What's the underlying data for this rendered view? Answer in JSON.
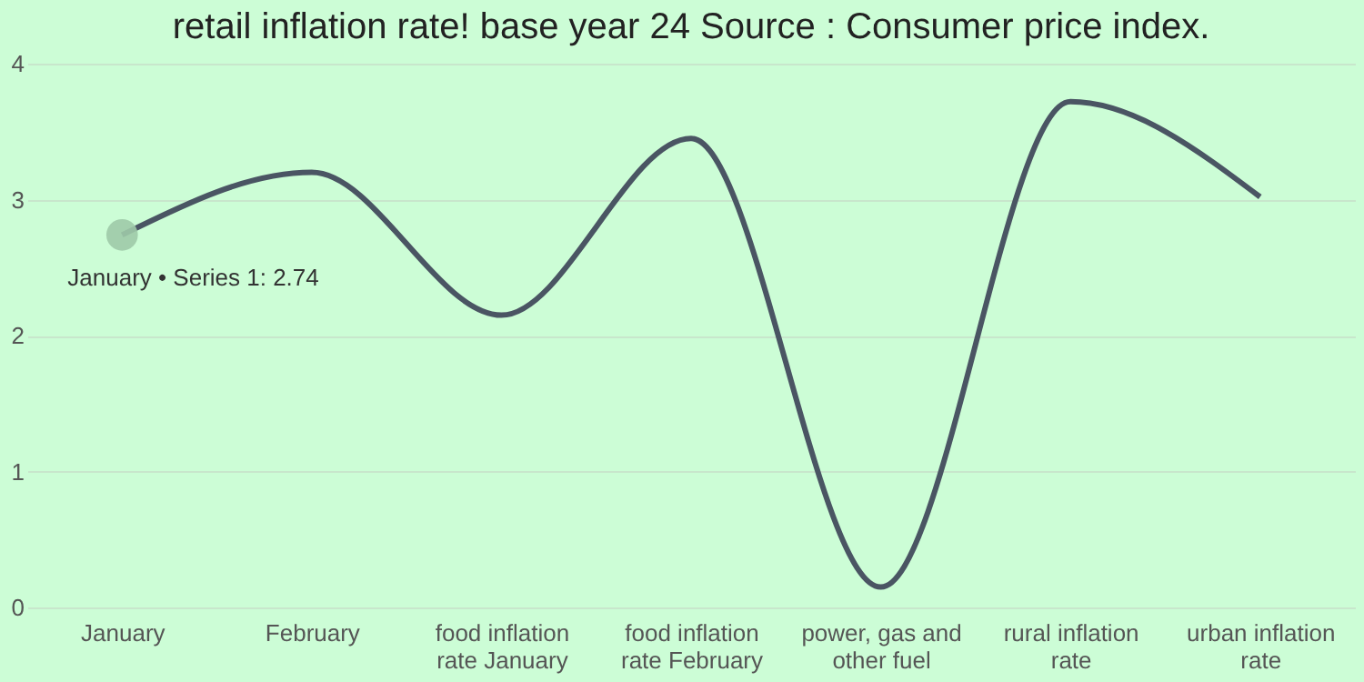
{
  "chart_data": {
    "type": "line",
    "title": "retail inflation rate! base year 24 Source : Consumer price index.",
    "categories": [
      "January",
      "February",
      "food inflation rate January",
      "food inflation rate February",
      "power, gas and other fuel",
      "rural inflation rate",
      "urban inflation rate"
    ],
    "series": [
      {
        "color": "#4a5563",
        "values": [
          2.74,
          3.2,
          2.15,
          3.45,
          0.15,
          3.72,
          3.02
        ]
      }
    ],
    "ylim": [
      0,
      4
    ],
    "yticks": [
      0,
      1,
      2,
      3,
      4
    ],
    "grid": "y",
    "marker": "none",
    "line_style": "solid",
    "annotations": [
      {
        "text": "January • Series 1: 2.74",
        "x": "January",
        "y": 2.74
      }
    ]
  }
}
